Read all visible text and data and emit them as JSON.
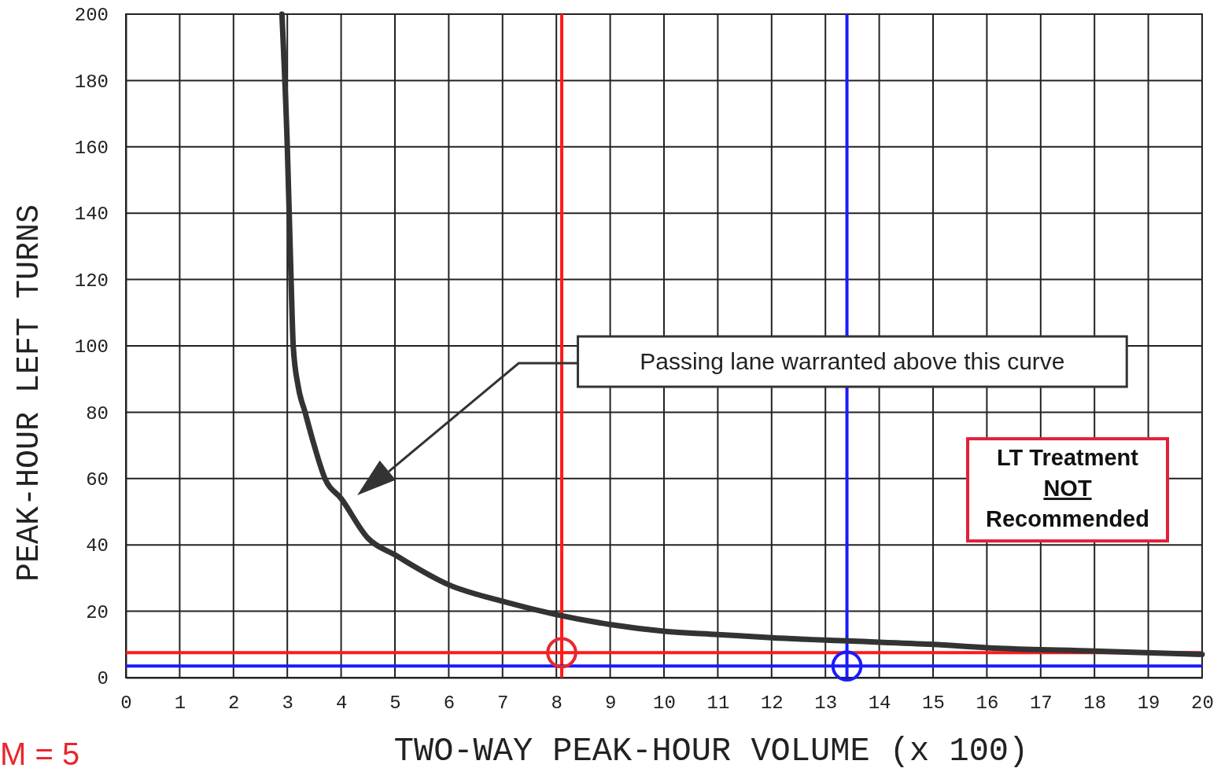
{
  "chart_data": {
    "type": "line",
    "xlabel": "TWO-WAY PEAK-HOUR VOLUME (x 100)",
    "ylabel": "PEAK-HOUR LEFT TURNS",
    "xlim": [
      0,
      20
    ],
    "ylim": [
      0,
      200
    ],
    "xticks": [
      0,
      1,
      2,
      3,
      4,
      5,
      6,
      7,
      8,
      9,
      10,
      11,
      12,
      13,
      14,
      15,
      16,
      17,
      18,
      19,
      20
    ],
    "yticks": [
      0,
      20,
      40,
      60,
      80,
      100,
      120,
      140,
      160,
      180,
      200
    ],
    "grid": true,
    "series": [
      {
        "color": "#333333",
        "x": [
          2.9,
          3.0,
          3.07,
          3.11,
          3.2,
          3.33,
          3.5,
          3.7,
          4.0,
          4.5,
          5.0,
          6.0,
          7.0,
          8.0,
          9.0,
          10.0,
          11.0,
          12.0,
          13.5,
          15.0,
          16.0,
          18.0,
          20.0
        ],
        "values": [
          200,
          160,
          120,
          100,
          88,
          80,
          70,
          60,
          54,
          42,
          37,
          28,
          23,
          19,
          16,
          14,
          13,
          12,
          11,
          10,
          9,
          8,
          7
        ]
      },
      {
        "type": "scatter",
        "marker": "circle",
        "color": "#e8262e",
        "x": [
          8.1
        ],
        "values": [
          7.5
        ]
      },
      {
        "type": "scatter",
        "marker": "circle",
        "color": "#1a1aff",
        "x": [
          13.4
        ],
        "values": [
          3.5
        ]
      }
    ],
    "ref_lines": [
      {
        "axis": "x",
        "value": 8.1,
        "color": "#ff1a1a"
      },
      {
        "axis": "y",
        "value": 7.5,
        "color": "#ff1a1a"
      },
      {
        "axis": "x",
        "value": 13.4,
        "color": "#1a1aff"
      },
      {
        "axis": "y",
        "value": 3.5,
        "color": "#1a1aff"
      }
    ],
    "annotations": [
      "Passing lane warranted above this curve",
      "LT Treatment\nNOT\nRecommended",
      "M = 5"
    ]
  }
}
